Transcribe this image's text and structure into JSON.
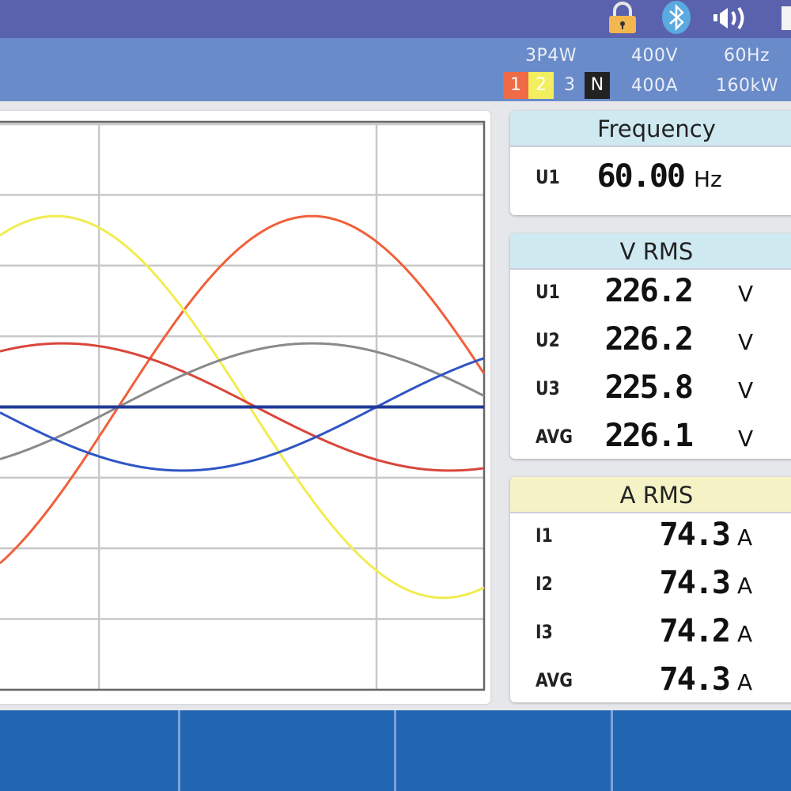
{
  "status_bar": {
    "icons": [
      "lock-icon",
      "bluetooth-icon",
      "speaker-icon",
      "battery-icon"
    ],
    "colors": {
      "background": "#5a62ad",
      "lock": "#f4b64f",
      "bluetooth": "#5aa9e0"
    }
  },
  "settings": {
    "wiring": "3P4W",
    "voltage_range": "400V",
    "frequency": "60Hz",
    "current_range": "400A",
    "power_range": "160kW",
    "phases": [
      {
        "label": "1",
        "color": "#f06a45"
      },
      {
        "label": "2",
        "color": "#f2ee5e"
      },
      {
        "label": "3",
        "color": "#6a8bc9"
      },
      {
        "label": "N",
        "color": "#222222"
      }
    ]
  },
  "frequency_card": {
    "title": "Frequency",
    "rows": [
      {
        "label": "U1",
        "value": "60.00",
        "unit": "Hz"
      }
    ]
  },
  "vrms_card": {
    "title": "V RMS",
    "rows": [
      {
        "label": "U1",
        "value": "226.2",
        "unit": "V"
      },
      {
        "label": "U2",
        "value": "226.2",
        "unit": "V"
      },
      {
        "label": "U3",
        "value": "225.8",
        "unit": "V"
      },
      {
        "label": "AVG",
        "value": "226.1",
        "unit": "V"
      }
    ]
  },
  "arms_card": {
    "title": "A RMS",
    "rows": [
      {
        "label": "I1",
        "value": "74.3",
        "unit": "A"
      },
      {
        "label": "I2",
        "value": "74.3",
        "unit": "A"
      },
      {
        "label": "I3",
        "value": "74.2",
        "unit": "A"
      },
      {
        "label": "AVG",
        "value": "74.3",
        "unit": "A"
      }
    ]
  },
  "function_keys": [
    "",
    "",
    "",
    ""
  ],
  "chart_data": {
    "type": "line",
    "title": "",
    "xlabel": "",
    "ylabel": "",
    "x_unit": "phase-degrees",
    "xlim": [
      0,
      225
    ],
    "ylim": [
      -4,
      4
    ],
    "grid": true,
    "series": [
      {
        "color": "#f0603a",
        "amplitude": 2.7,
        "phase_deg": -55
      },
      {
        "color": "#f2ec50",
        "amplitude": 2.7,
        "phase_deg": 64
      },
      {
        "color": "#d9463a",
        "amplitude": 0.9,
        "phase_deg": 61
      },
      {
        "color": "#8a8a8a",
        "amplitude": 0.9,
        "phase_deg": -55
      },
      {
        "color": "#2f55c4",
        "amplitude": 0.9,
        "phase_deg": -175
      },
      {
        "color": "#1f3a9a",
        "amplitude": 0,
        "phase_deg": 0
      }
    ]
  }
}
